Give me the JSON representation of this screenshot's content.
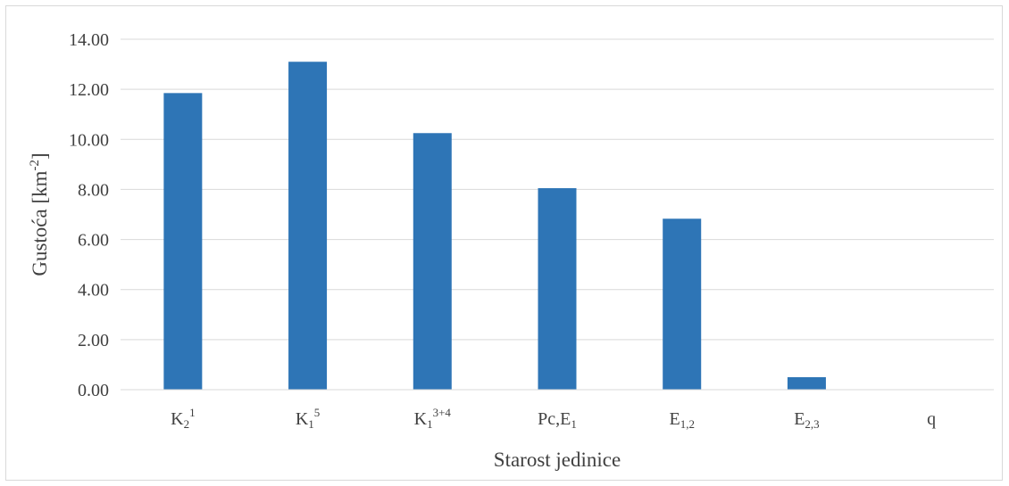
{
  "chart_data": {
    "type": "bar",
    "categories": [
      {
        "base": "K",
        "sub": "2",
        "sup": "1"
      },
      {
        "base": "K",
        "sub": "1",
        "sup": "5"
      },
      {
        "base": "K",
        "sub": "1",
        "sup": "3+4"
      },
      {
        "base": "Pc,E",
        "sub": "1",
        "sup": ""
      },
      {
        "base": "E",
        "sub": "1,2",
        "sup": ""
      },
      {
        "base": "E",
        "sub": "2,3",
        "sup": ""
      },
      {
        "base": "q",
        "sub": "",
        "sup": ""
      }
    ],
    "values": [
      11.85,
      13.1,
      10.25,
      8.05,
      6.83,
      0.5,
      0.0
    ],
    "title": "",
    "xlabel": "Starost jedinice",
    "ylabel": {
      "base": "Gustoća [km",
      "sup": "-2",
      "end": "]"
    },
    "ylim": [
      0,
      14
    ],
    "yticks": [
      "0.00",
      "2.00",
      "4.00",
      "6.00",
      "8.00",
      "10.00",
      "12.00",
      "14.00"
    ],
    "grid": true,
    "legend": "none",
    "bar_color": "#2e75b6",
    "grid_color": "#d9d9d9"
  }
}
